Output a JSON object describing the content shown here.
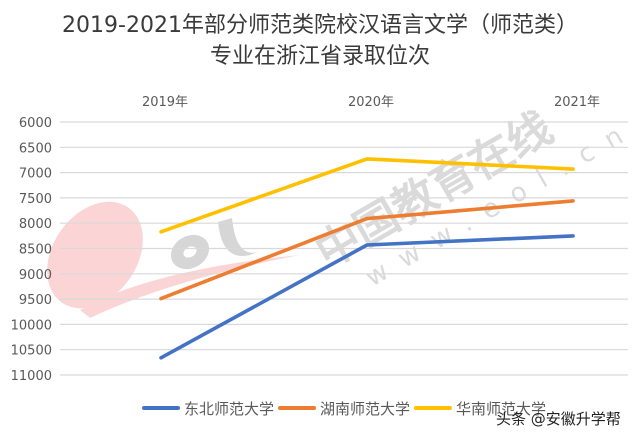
{
  "title": {
    "line1": "2019-2021年部分师范类院校汉语言文学（师范类）",
    "line2": "专业在浙江省录取位次"
  },
  "watermark": {
    "logo": "eol",
    "text": "中国教育在线",
    "url": "www.eol.cn"
  },
  "credit": "头条 @安徽升学帮",
  "colors": {
    "series_1": "#4472C4",
    "series_2": "#ED7D31",
    "series_3": "#FFC000",
    "grid": "#d9d9d9",
    "text": "#595959"
  },
  "chart_data": {
    "type": "line",
    "title": "2019-2021年部分师范类院校汉语言文学（师范类）专业在浙江省录取位次",
    "xlabel": "",
    "ylabel": "",
    "x_axis_position": "top",
    "y_axis_reversed": true,
    "ylim": [
      6000,
      11000
    ],
    "y_ticks": [
      6000,
      6500,
      7000,
      7500,
      8000,
      8500,
      9000,
      9500,
      10000,
      10500,
      11000
    ],
    "categories": [
      "2019年",
      "2020年",
      "2021年"
    ],
    "grid": true,
    "legend_position": "bottom",
    "series": [
      {
        "name": "东北师范大学",
        "color": "#4472C4",
        "values": [
          10660,
          8430,
          8250
        ]
      },
      {
        "name": "湖南师范大学",
        "color": "#ED7D31",
        "values": [
          9490,
          7910,
          7560
        ]
      },
      {
        "name": "华南师范大学",
        "color": "#FFC000",
        "values": [
          8170,
          6730,
          6930
        ]
      }
    ]
  }
}
